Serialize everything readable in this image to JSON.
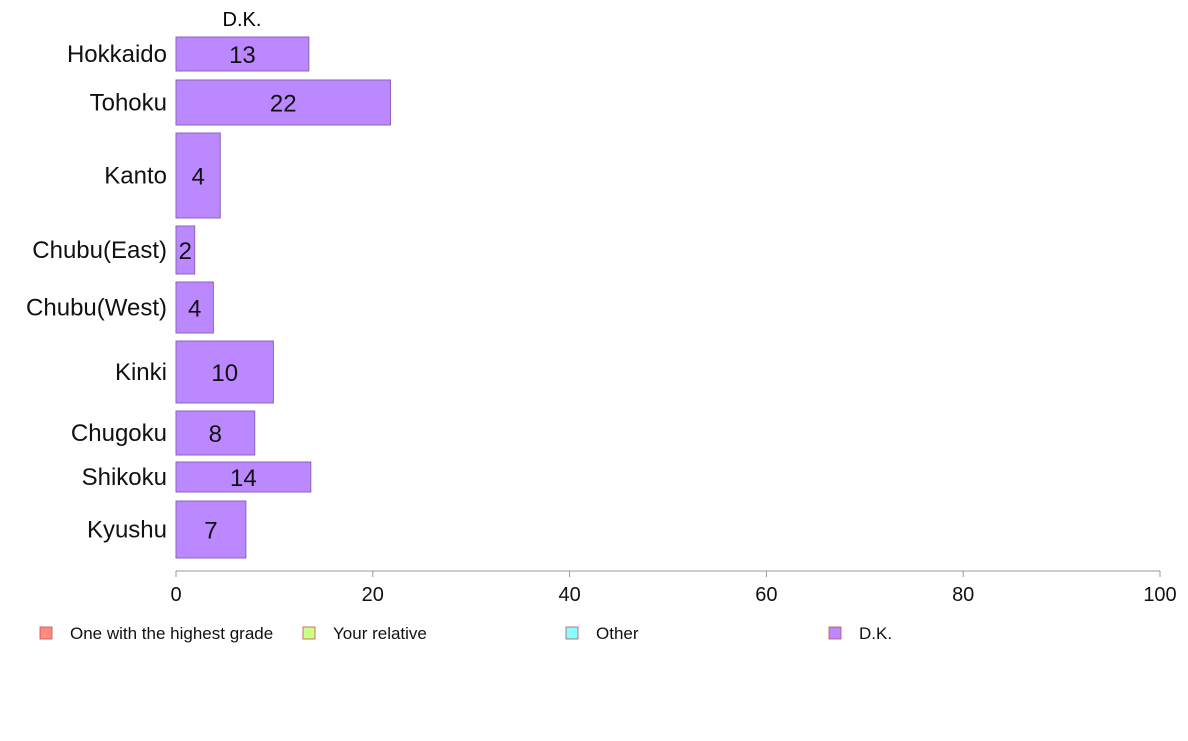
{
  "chart_data": {
    "type": "bar",
    "orientation": "horizontal",
    "column_header": "D.K.",
    "categories": [
      "Hokkaido",
      "Tohoku",
      "Kanto",
      "Chubu(East)",
      "Chubu(West)",
      "Kinki",
      "Chugoku",
      "Shikoku",
      "Kyushu"
    ],
    "series": [
      {
        "name": "D.K.",
        "values": [
          13.5,
          21.8,
          4.5,
          1.9,
          3.8,
          9.9,
          8.0,
          13.7,
          7.1
        ],
        "color": "#bb88ff"
      }
    ],
    "data_labels": [
      "13",
      "22",
      "4",
      "2",
      "4",
      "10",
      "8",
      "14",
      "7"
    ],
    "xlim": [
      0,
      100
    ],
    "xticks": [
      "0",
      "20",
      "40",
      "60",
      "80",
      "100"
    ],
    "title": "",
    "xlabel": "",
    "ylabel": "",
    "grid": false,
    "legend": {
      "position": "bottom",
      "entries": [
        {
          "label": "One with the highest grade",
          "color": "#ff8a80"
        },
        {
          "label": "Your relative",
          "color": "#ccff88"
        },
        {
          "label": "Other",
          "color": "#88ffff"
        },
        {
          "label": "D.K.",
          "color": "#bb88ff"
        }
      ]
    },
    "colors": {
      "bar_stroke": "#8866bb",
      "axis": "#999999",
      "legend_stroke": "#c05050"
    }
  }
}
